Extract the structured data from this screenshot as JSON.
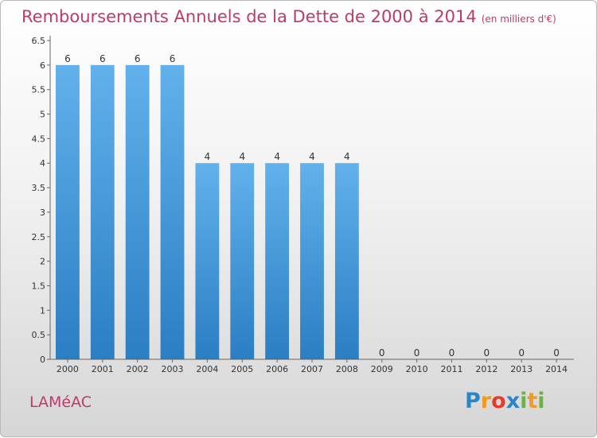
{
  "header": {
    "title": "Remboursements Annuels de la Dette de 2000 à 2014",
    "subtitle": "(en milliers d'€)"
  },
  "footer": {
    "commune": "LAMéAC",
    "brand": {
      "letters": [
        "P",
        "r",
        "o",
        "x",
        "i",
        "t",
        "i"
      ],
      "colors": [
        "#2a86c9",
        "#f39a1e",
        "#e53c2e",
        "#2a86c9",
        "#6cb33f",
        "#f39a1e",
        "#6cb33f"
      ]
    }
  },
  "chart_data": {
    "type": "bar",
    "categories": [
      "2000",
      "2001",
      "2002",
      "2003",
      "2004",
      "2005",
      "2006",
      "2007",
      "2008",
      "2009",
      "2010",
      "2011",
      "2012",
      "2013",
      "2014"
    ],
    "values": [
      6,
      6,
      6,
      6,
      4,
      4,
      4,
      4,
      4,
      0,
      0,
      0,
      0,
      0,
      0
    ],
    "data_labels": [
      "6",
      "6",
      "6",
      "6",
      "4",
      "4",
      "4",
      "4",
      "4",
      "0",
      "0",
      "0",
      "0",
      "0",
      "0"
    ],
    "title": "Remboursements Annuels de la Dette de 2000 à 2014",
    "xlabel": "",
    "ylabel": "",
    "ylim": [
      0,
      6.5
    ],
    "yticks": [
      "0",
      "0.5",
      "1",
      "1.5",
      "2",
      "2.5",
      "3",
      "3.5",
      "4",
      "4.5",
      "5",
      "5.5",
      "6",
      "6.5"
    ],
    "grid": false,
    "colors": {
      "bar_light": "#62b1ec",
      "bar_dark": "#2a7ec2",
      "axis": "#666666",
      "text": "#333333"
    }
  }
}
